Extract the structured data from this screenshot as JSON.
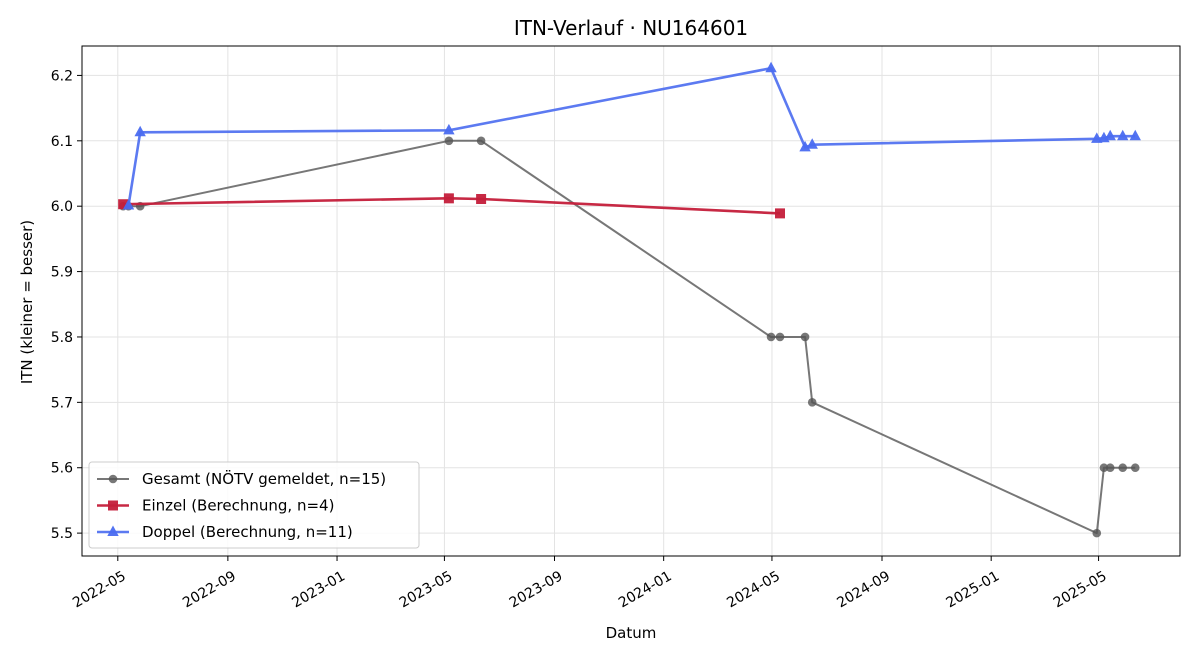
{
  "chart_data": {
    "type": "line",
    "title": "ITN-Verlauf · NU164601",
    "xlabel": "Datum",
    "ylabel": "ITN  (kleiner = besser)",
    "x_tick_labels": [
      "2022-05",
      "2022-09",
      "2023-01",
      "2023-05",
      "2023-09",
      "2024-01",
      "2024-05",
      "2024-09",
      "2025-01",
      "2025-05"
    ],
    "y_tick_labels": [
      "5.5",
      "5.6",
      "5.7",
      "5.8",
      "5.9",
      "6.0",
      "6.1",
      "6.2"
    ],
    "xlim": [
      "2022-03-22",
      "2025-07-31"
    ],
    "ylim": [
      5.465,
      6.245
    ],
    "grid": true,
    "legend_position": "lower-left",
    "series": [
      {
        "name": "Gesamt (NÖTV gemeldet, n=15)",
        "color": "#555555",
        "marker": "circle",
        "points": [
          [
            "2022-05-07",
            6.0
          ],
          [
            "2022-05-13",
            6.0
          ],
          [
            "2022-05-26",
            6.0
          ],
          [
            "2023-05-06",
            6.1
          ],
          [
            "2023-06-11",
            6.1
          ],
          [
            "2024-04-30",
            5.8
          ],
          [
            "2024-05-10",
            5.8
          ],
          [
            "2024-06-07",
            5.8
          ],
          [
            "2024-06-15",
            5.7
          ],
          [
            "2025-04-29",
            5.5
          ],
          [
            "2025-05-07",
            5.6
          ],
          [
            "2025-05-14",
            5.6
          ],
          [
            "2025-05-28",
            5.6
          ],
          [
            "2025-06-11",
            5.6
          ]
        ]
      },
      {
        "name": "Einzel (Berechnung, n=4)",
        "color": "#c41e3a",
        "marker": "square",
        "points": [
          [
            "2022-05-07",
            6.003
          ],
          [
            "2023-05-06",
            6.012
          ],
          [
            "2023-06-11",
            6.011
          ],
          [
            "2024-05-10",
            5.989
          ]
        ]
      },
      {
        "name": "Doppel (Berechnung, n=11)",
        "color": "#4a6cf0",
        "marker": "triangle",
        "points": [
          [
            "2022-05-13",
            6.001
          ],
          [
            "2022-05-26",
            6.113
          ],
          [
            "2023-05-06",
            6.116
          ],
          [
            "2024-04-30",
            6.211
          ],
          [
            "2024-06-07",
            6.09
          ],
          [
            "2024-06-15",
            6.094
          ],
          [
            "2025-04-29",
            6.103
          ],
          [
            "2025-05-07",
            6.104
          ],
          [
            "2025-05-14",
            6.107
          ],
          [
            "2025-05-28",
            6.107
          ],
          [
            "2025-06-11",
            6.107
          ]
        ]
      }
    ]
  }
}
